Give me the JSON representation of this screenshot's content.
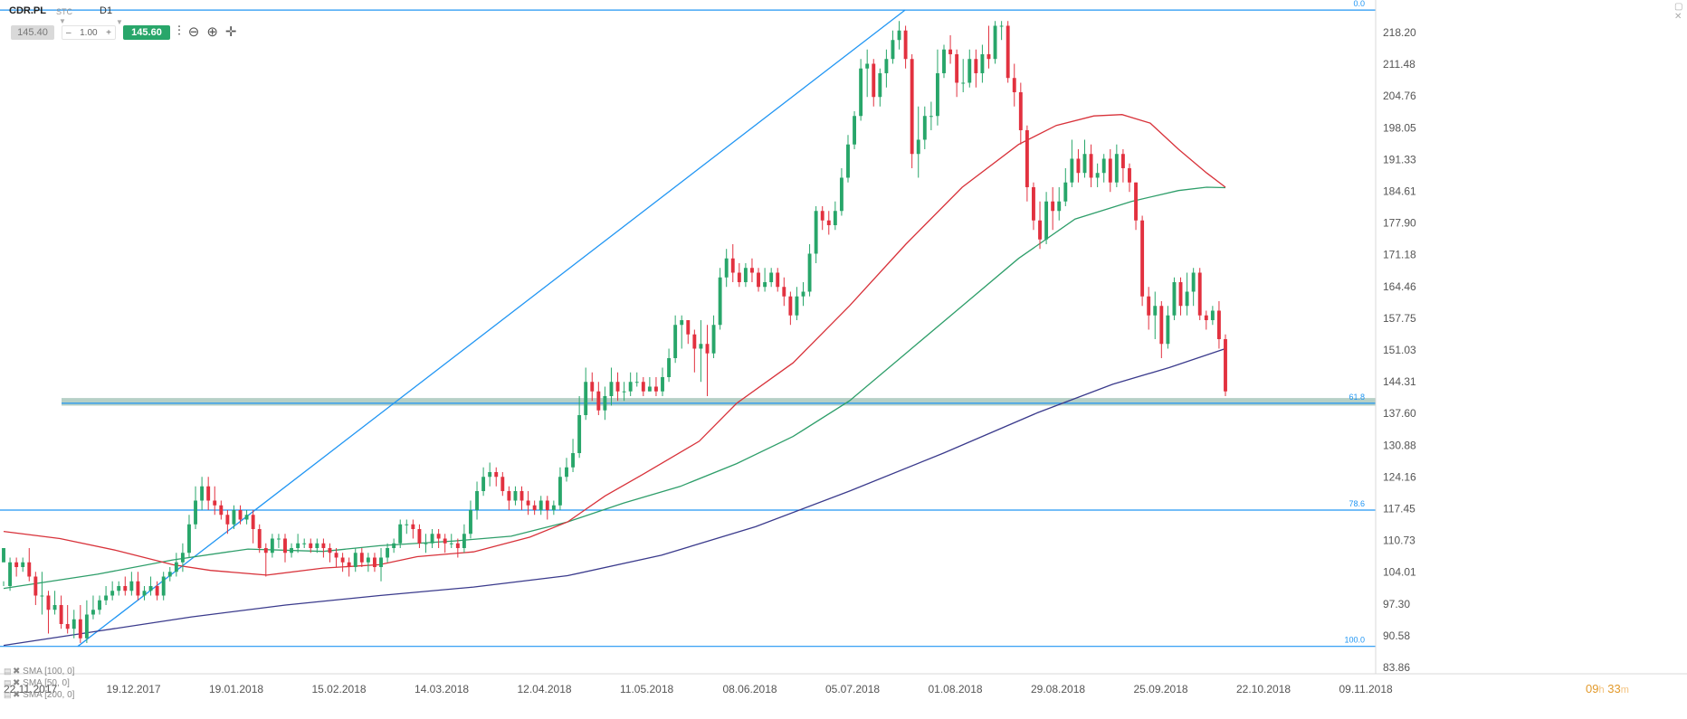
{
  "toolbar": {
    "symbol": "CDR.PL",
    "symbol_type": "STC",
    "timeframe": "D1",
    "bid": "145.40",
    "lot_minus": "–",
    "lot": "1.00",
    "lot_plus": "+",
    "ask": "145.60"
  },
  "indicators": [
    "SMA [100, 0]",
    "SMA [50, 0]",
    "SMA [200, 0]"
  ],
  "timer": {
    "hours": "09",
    "h": "h",
    "minutes": "33",
    "m": "m"
  },
  "colors": {
    "up": "#28a66a",
    "down": "#e2313f",
    "sma100": "#2e9e6a",
    "sma50": "#d8323a",
    "sma200": "#3a3a8c",
    "fib": "#2196f3",
    "zone": "#7aa998"
  },
  "chart_data": {
    "type": "candlestick",
    "ylim": [
      83.86,
      222.9
    ],
    "y_ticks": [
      "218.20",
      "211.48",
      "204.76",
      "198.05",
      "191.33",
      "184.61",
      "177.90",
      "171.18",
      "164.46",
      "157.75",
      "151.03",
      "144.31",
      "137.60",
      "130.88",
      "124.16",
      "117.45",
      "110.73",
      "104.01",
      "97.30",
      "90.58",
      "83.86"
    ],
    "x_ticks": [
      "22.11.2017",
      "19.12.2017",
      "19.01.2018",
      "15.02.2018",
      "14.03.2018",
      "12.04.2018",
      "11.05.2018",
      "08.06.2018",
      "05.07.2018",
      "01.08.2018",
      "29.08.2018",
      "25.09.2018",
      "22.10.2018",
      "09.11.2018"
    ],
    "fib_levels": [
      {
        "label": "0.0",
        "price": 222.3
      },
      {
        "label": "61.8",
        "price": 139.5
      },
      {
        "label": "78.6",
        "price": 117.0
      },
      {
        "label": "100.0",
        "price": 88.3
      }
    ],
    "support_zone": [
      139.0,
      140.6
    ],
    "trendline": {
      "from": {
        "date": "22.11.2017",
        "price": 88.3
      },
      "to": {
        "date": "26.07.2018",
        "price": 222.3
      }
    },
    "series": [
      {
        "name": "SMA [100, 0]",
        "values": [
          [
            0,
            100.5
          ],
          [
            50,
            103.5
          ],
          [
            90,
            106.5
          ],
          [
            130,
            108.8
          ],
          [
            170,
            108.3
          ],
          [
            200,
            109.5
          ],
          [
            240,
            110.5
          ],
          [
            270,
            111.5
          ],
          [
            300,
            114.5
          ],
          [
            330,
            118.5
          ],
          [
            360,
            122
          ],
          [
            390,
            126.8
          ],
          [
            420,
            132.5
          ],
          [
            450,
            140
          ],
          [
            480,
            150
          ],
          [
            510,
            160
          ],
          [
            540,
            170
          ],
          [
            570,
            178.3
          ],
          [
            600,
            182
          ],
          [
            625,
            184.3
          ],
          [
            640,
            185
          ],
          [
            650,
            184.9
          ]
        ]
      },
      {
        "name": "SMA [50, 0]",
        "values": [
          [
            0,
            112.5
          ],
          [
            30,
            111
          ],
          [
            60,
            108.5
          ],
          [
            90,
            105.5
          ],
          [
            110,
            104.3
          ],
          [
            140,
            103.3
          ],
          [
            170,
            104.8
          ],
          [
            200,
            105.5
          ],
          [
            220,
            107.2
          ],
          [
            250,
            108.2
          ],
          [
            280,
            111.3
          ],
          [
            300,
            114.5
          ],
          [
            320,
            120
          ],
          [
            340,
            124.5
          ],
          [
            370,
            131.5
          ],
          [
            390,
            139.5
          ],
          [
            420,
            148
          ],
          [
            450,
            160
          ],
          [
            480,
            173
          ],
          [
            510,
            185
          ],
          [
            540,
            194
          ],
          [
            560,
            198
          ],
          [
            580,
            200
          ],
          [
            595,
            200.3
          ],
          [
            610,
            198.5
          ],
          [
            625,
            193
          ],
          [
            640,
            188
          ],
          [
            650,
            185
          ]
        ]
      },
      {
        "name": "SMA [200, 0]",
        "values": [
          [
            0,
            88.5
          ],
          [
            50,
            91.5
          ],
          [
            100,
            94.5
          ],
          [
            150,
            97
          ],
          [
            200,
            99
          ],
          [
            250,
            100.8
          ],
          [
            300,
            103.2
          ],
          [
            350,
            107.5
          ],
          [
            400,
            113.5
          ],
          [
            450,
            121
          ],
          [
            500,
            129
          ],
          [
            550,
            137.5
          ],
          [
            590,
            143.5
          ],
          [
            620,
            147
          ],
          [
            650,
            151
          ]
        ]
      }
    ],
    "candles": [
      [
        106,
        109,
        102,
        101
      ],
      [
        101,
        106,
        107,
        100
      ],
      [
        106,
        105,
        107,
        103
      ],
      [
        105,
        106,
        107,
        104
      ],
      [
        106,
        103,
        109,
        102
      ],
      [
        103,
        99,
        104,
        97
      ],
      [
        99,
        99,
        104,
        95
      ],
      [
        99,
        96,
        100,
        91
      ],
      [
        96,
        97,
        100,
        95
      ],
      [
        97,
        93,
        99,
        92
      ],
      [
        93,
        92,
        97,
        91
      ],
      [
        92,
        94,
        96,
        90
      ],
      [
        94,
        90,
        97,
        89
      ],
      [
        90,
        95,
        98,
        89
      ],
      [
        95,
        96,
        99,
        94
      ],
      [
        96,
        98,
        99,
        95
      ],
      [
        98,
        99,
        101,
        97
      ],
      [
        99,
        100,
        102,
        98
      ],
      [
        100,
        101,
        102,
        99
      ],
      [
        101,
        100,
        103,
        99
      ],
      [
        100,
        102,
        104,
        99
      ],
      [
        102,
        99,
        104,
        98
      ],
      [
        99,
        100,
        101,
        98
      ],
      [
        100,
        101,
        103,
        99
      ],
      [
        101,
        99,
        102,
        98
      ],
      [
        99,
        103,
        104,
        98
      ],
      [
        103,
        104,
        105,
        102
      ],
      [
        104,
        106,
        108,
        103
      ],
      [
        106,
        108,
        110,
        104
      ],
      [
        108,
        114,
        116,
        107
      ],
      [
        114,
        119,
        122,
        113
      ],
      [
        119,
        122,
        124,
        117
      ],
      [
        122,
        119,
        124,
        117
      ],
      [
        119,
        118,
        122,
        116
      ],
      [
        118,
        116,
        119,
        115
      ],
      [
        116,
        114,
        117,
        112
      ],
      [
        114,
        117,
        118,
        113
      ],
      [
        117,
        115,
        118,
        114
      ],
      [
        115,
        116,
        117,
        114
      ],
      [
        116,
        113,
        117,
        110
      ],
      [
        113,
        109,
        114,
        108
      ],
      [
        109,
        108,
        110,
        103
      ],
      [
        108,
        111,
        112,
        107
      ],
      [
        111,
        111,
        112,
        109
      ],
      [
        111,
        108,
        112,
        106
      ],
      [
        108,
        109,
        110,
        107
      ],
      [
        109,
        110,
        112,
        108
      ],
      [
        110,
        110,
        111,
        109
      ],
      [
        110,
        109,
        111,
        108
      ],
      [
        109,
        110,
        111,
        108
      ],
      [
        110,
        109,
        111,
        107
      ],
      [
        109,
        108,
        110,
        106
      ],
      [
        108,
        107,
        109,
        105
      ],
      [
        107,
        106,
        108,
        104
      ],
      [
        106,
        105,
        107,
        103
      ],
      [
        105,
        108,
        109,
        104
      ],
      [
        108,
        106,
        109,
        105
      ],
      [
        106,
        107,
        108,
        104
      ],
      [
        107,
        105,
        108,
        104
      ],
      [
        105,
        107,
        109,
        102
      ],
      [
        107,
        109,
        110,
        106
      ],
      [
        109,
        110,
        111,
        108
      ],
      [
        110,
        114,
        115,
        109
      ],
      [
        114,
        114,
        115,
        112
      ],
      [
        114,
        113,
        115,
        111
      ],
      [
        113,
        110,
        114,
        109
      ],
      [
        110,
        110,
        112,
        108
      ],
      [
        110,
        112,
        113,
        109
      ],
      [
        112,
        111,
        113,
        109
      ],
      [
        111,
        110,
        112,
        108
      ],
      [
        110,
        110,
        112,
        109
      ],
      [
        110,
        109,
        111,
        107
      ],
      [
        109,
        112,
        114,
        108
      ],
      [
        112,
        117,
        119,
        111
      ],
      [
        117,
        121,
        123,
        115
      ],
      [
        121,
        124,
        126,
        120
      ],
      [
        124,
        125,
        127,
        122
      ],
      [
        125,
        124,
        126,
        122
      ],
      [
        124,
        121,
        125,
        120
      ],
      [
        121,
        119,
        122,
        117
      ],
      [
        119,
        121,
        122,
        118
      ],
      [
        121,
        119,
        122,
        117
      ],
      [
        119,
        118,
        121,
        116
      ],
      [
        118,
        117,
        119,
        116
      ],
      [
        117,
        119,
        120,
        116
      ],
      [
        119,
        117,
        120,
        115
      ],
      [
        117,
        118,
        119,
        116
      ],
      [
        118,
        124,
        126,
        117
      ],
      [
        124,
        126,
        128,
        123
      ],
      [
        126,
        129,
        132,
        125
      ],
      [
        129,
        137,
        141,
        128
      ],
      [
        137,
        144,
        147,
        136
      ],
      [
        144,
        142,
        146,
        140
      ],
      [
        142,
        138,
        144,
        137
      ],
      [
        138,
        141,
        143,
        136
      ],
      [
        141,
        144,
        147,
        139
      ],
      [
        144,
        142,
        146,
        140
      ],
      [
        142,
        142,
        144,
        140
      ],
      [
        142,
        144,
        146,
        141
      ],
      [
        144,
        144,
        146,
        143
      ],
      [
        144,
        142,
        145,
        141
      ],
      [
        142,
        143,
        145,
        142
      ],
      [
        143,
        142,
        145,
        141
      ],
      [
        142,
        145,
        147,
        141
      ],
      [
        145,
        149,
        151,
        144
      ],
      [
        149,
        156,
        158,
        148
      ],
      [
        156,
        157,
        158,
        151
      ],
      [
        157,
        154,
        157,
        152
      ],
      [
        154,
        151,
        155,
        146
      ],
      [
        151,
        152,
        157,
        144
      ],
      [
        152,
        150,
        156,
        141
      ],
      [
        150,
        156,
        158,
        149
      ],
      [
        156,
        166,
        168,
        155
      ],
      [
        166,
        170,
        172,
        164
      ],
      [
        170,
        167,
        173,
        165
      ],
      [
        167,
        165,
        169,
        164
      ],
      [
        165,
        168,
        169,
        164
      ],
      [
        168,
        167,
        170,
        165
      ],
      [
        167,
        164,
        168,
        163
      ],
      [
        164,
        165,
        168,
        163
      ],
      [
        165,
        167,
        168,
        164
      ],
      [
        167,
        164,
        168,
        163
      ],
      [
        164,
        162,
        166,
        160
      ],
      [
        162,
        158,
        163,
        156
      ],
      [
        158,
        162,
        164,
        157
      ],
      [
        162,
        163,
        165,
        160
      ],
      [
        163,
        171,
        173,
        162
      ],
      [
        171,
        180,
        181,
        169
      ],
      [
        180,
        178,
        181,
        176
      ],
      [
        178,
        177,
        180,
        175
      ],
      [
        177,
        180,
        182,
        176
      ],
      [
        180,
        187,
        189,
        179
      ],
      [
        187,
        194,
        196,
        186
      ],
      [
        194,
        200,
        201,
        193
      ],
      [
        200,
        210,
        212,
        199
      ],
      [
        210,
        211,
        214,
        204
      ],
      [
        211,
        204,
        212,
        202
      ],
      [
        204,
        209,
        210,
        202
      ],
      [
        209,
        212,
        214,
        206
      ],
      [
        212,
        216,
        218,
        211
      ],
      [
        216,
        218,
        220,
        214
      ],
      [
        218,
        212,
        219,
        210
      ],
      [
        212,
        192,
        213,
        189
      ],
      [
        192,
        195,
        202,
        187
      ],
      [
        195,
        200,
        202,
        193
      ],
      [
        200,
        200,
        203,
        197
      ],
      [
        200,
        209,
        214,
        198
      ],
      [
        209,
        214,
        215,
        208
      ],
      [
        214,
        213,
        217,
        211
      ],
      [
        213,
        207,
        214,
        204
      ],
      [
        207,
        207,
        212,
        205
      ],
      [
        207,
        212,
        214,
        206
      ],
      [
        212,
        209,
        214,
        206
      ],
      [
        209,
        213,
        215,
        207
      ],
      [
        213,
        212,
        219,
        210
      ],
      [
        212,
        219,
        220,
        211
      ],
      [
        219,
        219,
        220,
        216
      ],
      [
        219,
        208,
        220,
        207
      ],
      [
        208,
        205,
        211,
        202
      ],
      [
        205,
        197,
        207,
        194
      ],
      [
        197,
        185,
        198,
        182
      ],
      [
        185,
        178,
        186,
        176
      ],
      [
        178,
        174,
        182,
        172
      ],
      [
        174,
        182,
        184,
        173
      ],
      [
        182,
        180,
        185,
        176
      ],
      [
        180,
        182,
        185,
        178
      ],
      [
        182,
        186,
        189,
        181
      ],
      [
        186,
        191,
        195,
        185
      ],
      [
        191,
        188,
        193,
        186
      ],
      [
        188,
        192,
        195,
        187
      ],
      [
        192,
        187,
        194,
        185
      ],
      [
        187,
        188,
        190,
        185
      ],
      [
        188,
        191,
        192,
        186
      ],
      [
        191,
        186,
        193,
        184
      ],
      [
        186,
        192,
        194,
        185
      ],
      [
        192,
        189,
        193,
        186
      ],
      [
        189,
        186,
        190,
        184
      ],
      [
        186,
        178,
        186,
        176
      ],
      [
        178,
        162,
        179,
        160
      ],
      [
        162,
        158,
        164,
        155
      ],
      [
        158,
        160,
        163,
        153
      ],
      [
        160,
        152,
        161,
        149
      ],
      [
        152,
        158,
        160,
        151
      ],
      [
        158,
        165,
        166,
        157
      ],
      [
        165,
        160,
        166,
        158
      ],
      [
        160,
        163,
        167,
        158
      ],
      [
        163,
        167,
        168,
        160
      ],
      [
        167,
        158,
        168,
        157
      ],
      [
        158,
        157,
        159,
        155
      ],
      [
        157,
        159,
        160,
        156
      ],
      [
        159,
        153,
        161,
        151
      ],
      [
        153,
        142,
        154,
        141
      ]
    ]
  }
}
